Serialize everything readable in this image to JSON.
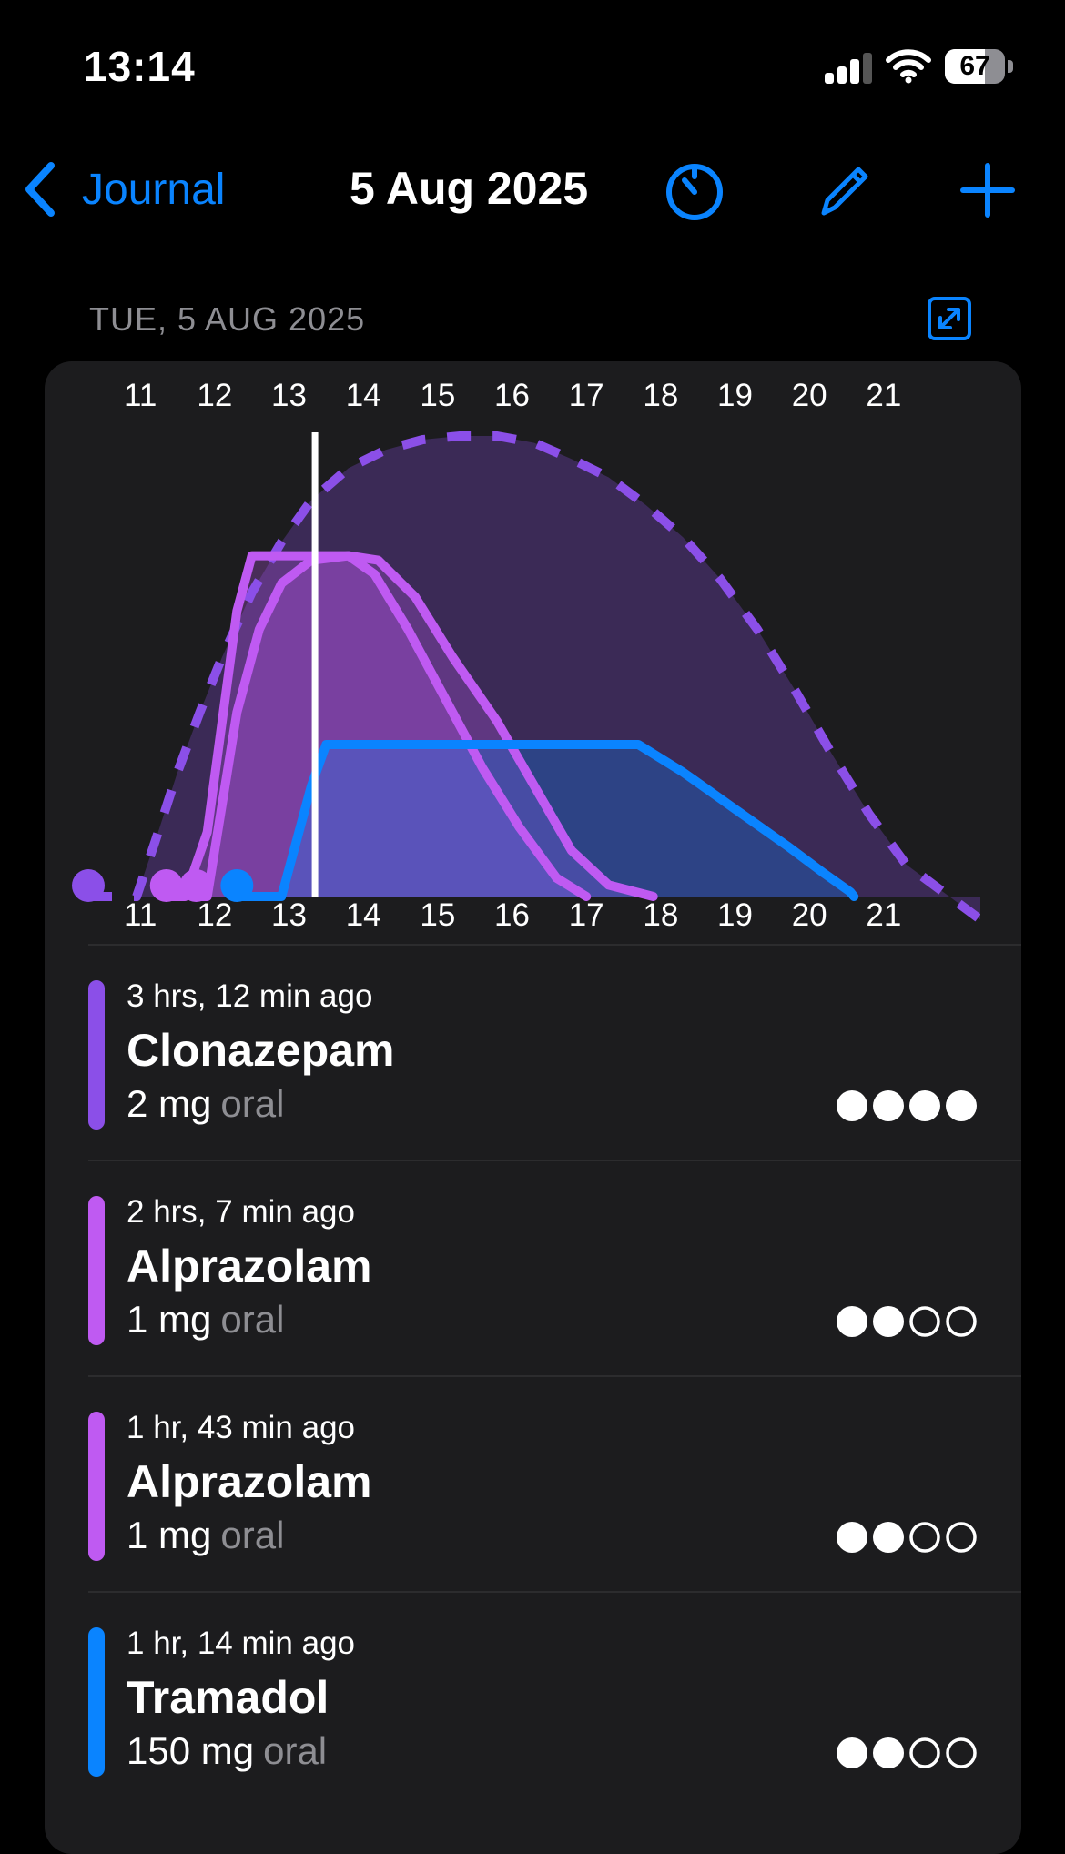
{
  "status_bar": {
    "time": "13:14",
    "battery_pct": "67",
    "battery_level": 0.67,
    "icons": [
      "cellular-signal-icon",
      "wifi-icon",
      "battery-icon"
    ]
  },
  "nav": {
    "back_label": "Journal",
    "title": "5 Aug 2025",
    "icons": [
      "chevron-left-icon",
      "timer-icon",
      "pencil-icon",
      "plus-icon"
    ]
  },
  "section": {
    "header": "TUE, 5 AUG 2025",
    "expand_icon": "expand-arrows-icon"
  },
  "colors": {
    "accent": "#0a84ff",
    "clonazepam": "#8b4fe8",
    "alprazolam": "#bf5af2",
    "tramadol": "#0a84ff",
    "background": "#000000",
    "card": "#1c1c1e"
  },
  "chart_data": {
    "type": "area",
    "x_unit": "hour",
    "xlim": [
      10.3,
      22.3
    ],
    "ylim": [
      0,
      1
    ],
    "x_ticks": [
      11,
      12,
      13,
      14,
      15,
      16,
      17,
      18,
      19,
      20,
      21
    ],
    "tick_labels": [
      "11",
      "12",
      "13",
      "14",
      "15",
      "16",
      "17",
      "18",
      "19",
      "20",
      "21"
    ],
    "now": 13.35,
    "grid": false,
    "series": [
      {
        "color": "#8b4fe8",
        "style": "dashed",
        "onset": 10.3,
        "dose_marker": 10.3,
        "points": [
          [
            10.3,
            0
          ],
          [
            10.95,
            0
          ],
          [
            11.2,
            0.12
          ],
          [
            11.5,
            0.27
          ],
          [
            11.8,
            0.4
          ],
          [
            12.1,
            0.52
          ],
          [
            12.5,
            0.66
          ],
          [
            12.9,
            0.77
          ],
          [
            13.3,
            0.86
          ],
          [
            13.8,
            0.93
          ],
          [
            14.3,
            0.97
          ],
          [
            14.8,
            0.992
          ],
          [
            15.3,
            1.0
          ],
          [
            15.8,
            1.0
          ],
          [
            16.3,
            0.985
          ],
          [
            16.8,
            0.95
          ],
          [
            17.3,
            0.91
          ],
          [
            17.8,
            0.85
          ],
          [
            18.3,
            0.78
          ],
          [
            18.8,
            0.69
          ],
          [
            19.3,
            0.58
          ],
          [
            19.8,
            0.45
          ],
          [
            20.3,
            0.31
          ],
          [
            20.8,
            0.18
          ],
          [
            21.3,
            0.07
          ],
          [
            22.3,
            -0.05
          ]
        ]
      },
      {
        "color": "#bf5af2",
        "style": "solid",
        "onset": 11.35,
        "dose_marker": 11.35,
        "points": [
          [
            11.35,
            0
          ],
          [
            11.6,
            0
          ],
          [
            11.9,
            0.14
          ],
          [
            12.3,
            0.62
          ],
          [
            12.5,
            0.74
          ],
          [
            12.9,
            0.74
          ],
          [
            13.4,
            0.74
          ],
          [
            13.8,
            0.74
          ],
          [
            14.15,
            0.7
          ],
          [
            14.6,
            0.58
          ],
          [
            15.1,
            0.43
          ],
          [
            15.6,
            0.28
          ],
          [
            16.1,
            0.15
          ],
          [
            16.6,
            0.04
          ],
          [
            17.0,
            0.0
          ]
        ]
      },
      {
        "color": "#bf5af2",
        "style": "solid",
        "onset": 11.75,
        "dose_marker": 11.75,
        "points": [
          [
            11.75,
            0
          ],
          [
            11.9,
            0
          ],
          [
            12.3,
            0.4
          ],
          [
            12.6,
            0.58
          ],
          [
            12.9,
            0.68
          ],
          [
            13.3,
            0.73
          ],
          [
            13.8,
            0.74
          ],
          [
            14.2,
            0.73
          ],
          [
            14.7,
            0.65
          ],
          [
            15.2,
            0.52
          ],
          [
            15.8,
            0.38
          ],
          [
            16.3,
            0.24
          ],
          [
            16.8,
            0.1
          ],
          [
            17.3,
            0.025
          ],
          [
            17.9,
            0.0
          ]
        ]
      },
      {
        "color": "#0a84ff",
        "style": "solid",
        "onset": 12.3,
        "dose_marker": 12.3,
        "points": [
          [
            12.3,
            0
          ],
          [
            12.9,
            0
          ],
          [
            13.3,
            0.24
          ],
          [
            13.5,
            0.33
          ],
          [
            13.8,
            0.33
          ],
          [
            14.8,
            0.33
          ],
          [
            15.8,
            0.33
          ],
          [
            16.8,
            0.33
          ],
          [
            17.3,
            0.33
          ],
          [
            17.7,
            0.33
          ],
          [
            18.3,
            0.27
          ],
          [
            19.0,
            0.19
          ],
          [
            19.7,
            0.11
          ],
          [
            20.2,
            0.05
          ],
          [
            20.55,
            0.01
          ],
          [
            20.6,
            0.0
          ]
        ]
      }
    ]
  },
  "ingestions": [
    {
      "time_ago": "3 hrs, 12 min ago",
      "name": "Clonazepam",
      "dose": "2 mg",
      "route": "oral",
      "color": "#8b4fe8",
      "dots_filled": 4,
      "dots_total": 4
    },
    {
      "time_ago": "2 hrs, 7 min ago",
      "name": "Alprazolam",
      "dose": "1 mg",
      "route": "oral",
      "color": "#bf5af2",
      "dots_filled": 2,
      "dots_total": 4
    },
    {
      "time_ago": "1 hr, 43 min ago",
      "name": "Alprazolam",
      "dose": "1 mg",
      "route": "oral",
      "color": "#bf5af2",
      "dots_filled": 2,
      "dots_total": 4
    },
    {
      "time_ago": "1 hr, 14 min ago",
      "name": "Tramadol",
      "dose": "150 mg",
      "route": "oral",
      "color": "#0a84ff",
      "dots_filled": 2,
      "dots_total": 4
    }
  ]
}
